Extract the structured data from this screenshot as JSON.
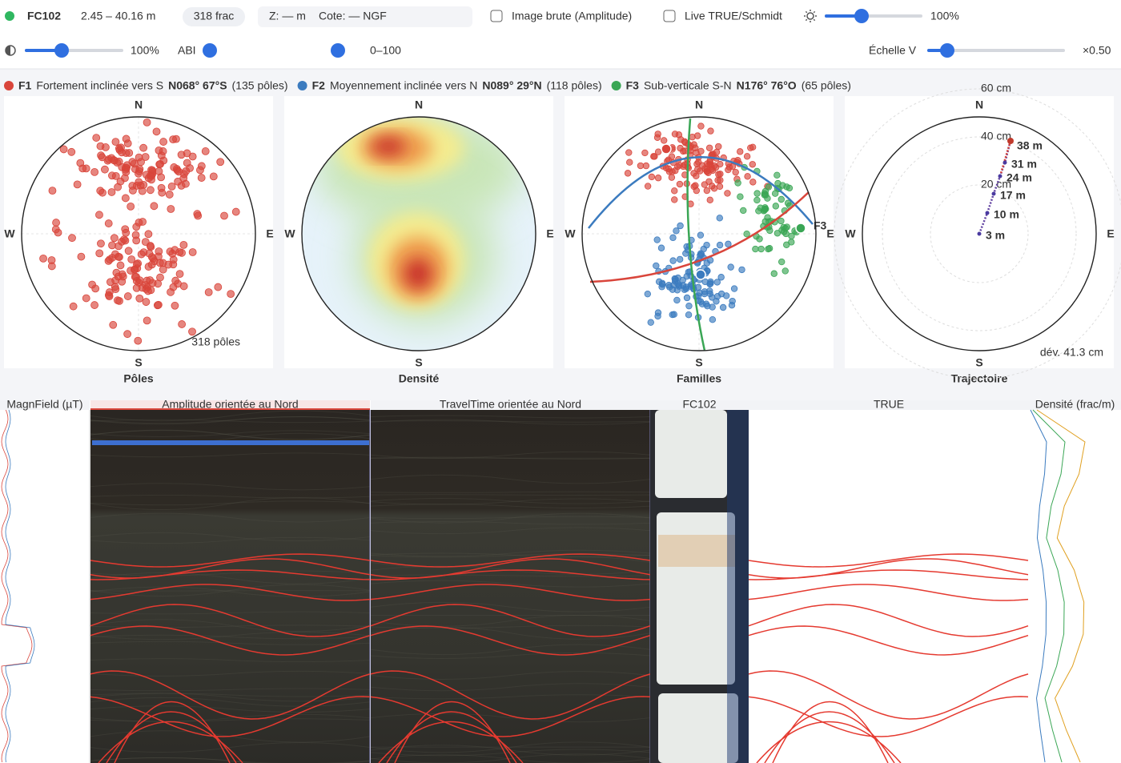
{
  "toolbar": {
    "well": "FC102",
    "range": "2.45 – 40.16 m",
    "frac_count": "318 frac",
    "z": "Z: — m",
    "cote": "Cote: — NGF",
    "raw_image": "Image brute (Amplitude)",
    "live": "Live TRUE/Schmidt",
    "brightness": "100%",
    "contrast": "100%",
    "abi": "ABI",
    "abi_range": "0–100",
    "vscale_label": "Échelle V",
    "vscale": "×0.50"
  },
  "families": [
    {
      "id": "F1",
      "name": "Fortement inclinée vers S",
      "orientation": "N068° 67°S",
      "count": "(135 pôles)",
      "color": "#d9453b"
    },
    {
      "id": "F2",
      "name": "Moyennement inclinée vers N",
      "orientation": "N089° 29°N",
      "count": "(118 pôles)",
      "color": "#3b7bbf"
    },
    {
      "id": "F3",
      "name": "Sub-verticale S-N",
      "orientation": "N176° 76°O",
      "count": "(65 pôles)",
      "color": "#3aa655"
    }
  ],
  "compass": {
    "n": "N",
    "s": "S",
    "w": "W",
    "e": "E"
  },
  "panels": [
    {
      "title": "Pôles"
    },
    {
      "title": "Densité"
    },
    {
      "title": "Familles"
    },
    {
      "title": "Trajectoire"
    }
  ],
  "poles_note": "318 pôles",
  "trajectory": {
    "rings": [
      "20 cm",
      "40 cm",
      "60 cm"
    ],
    "depths": [
      "3 m",
      "10 m",
      "17 m",
      "24 m",
      "31 m",
      "38 m"
    ],
    "deviation": "dév. 41.3 cm"
  },
  "tracks": [
    "MagnField (µT)",
    "Amplitude orientée au Nord",
    "TravelTime orientée au Nord",
    "FC102",
    "TRUE",
    "Densité (frac/m)"
  ]
}
